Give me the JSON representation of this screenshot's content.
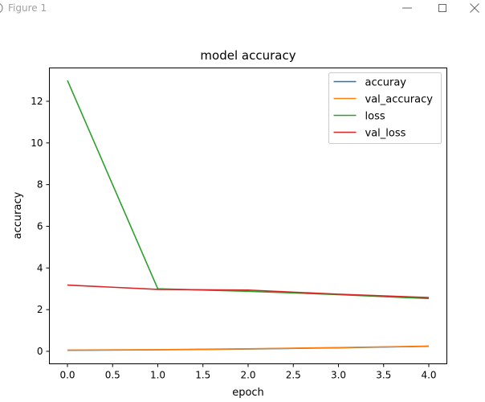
{
  "window": {
    "title": "Figure 1",
    "icon": "matplotlib-figure-icon",
    "controls": {
      "minimize": "minimize-icon",
      "maximize": "maximize-icon",
      "close": "close-icon"
    }
  },
  "chart_data": {
    "type": "line",
    "title": "model accuracy",
    "xlabel": "epoch",
    "ylabel": "accuracy",
    "x": [
      0,
      1,
      2,
      3,
      4
    ],
    "xlim": [
      -0.2,
      4.2
    ],
    "ylim": [
      -0.6,
      13.6
    ],
    "xticks": [
      0.0,
      0.5,
      1.0,
      1.5,
      2.0,
      2.5,
      3.0,
      3.5,
      4.0
    ],
    "xtick_labels": [
      "0.0",
      "0.5",
      "1.0",
      "1.5",
      "2.0",
      "2.5",
      "3.0",
      "3.5",
      "4.0"
    ],
    "yticks": [
      0,
      2,
      4,
      6,
      8,
      10,
      12
    ],
    "ytick_labels": [
      "0",
      "2",
      "4",
      "6",
      "8",
      "10",
      "12"
    ],
    "grid": false,
    "legend_position": "top-right",
    "series": [
      {
        "name": "accuray",
        "color": "#1f77b4",
        "values": [
          0.05,
          0.07,
          0.11,
          0.17,
          0.24
        ]
      },
      {
        "name": "val_accuracy",
        "color": "#ff7f0e",
        "values": [
          0.06,
          0.08,
          0.12,
          0.18,
          0.25
        ]
      },
      {
        "name": "loss",
        "color": "#2ca02c",
        "values": [
          13.0,
          3.0,
          2.88,
          2.72,
          2.53
        ]
      },
      {
        "name": "val_loss",
        "color": "#d62728",
        "values": [
          3.18,
          2.97,
          2.94,
          2.74,
          2.58
        ]
      }
    ]
  }
}
